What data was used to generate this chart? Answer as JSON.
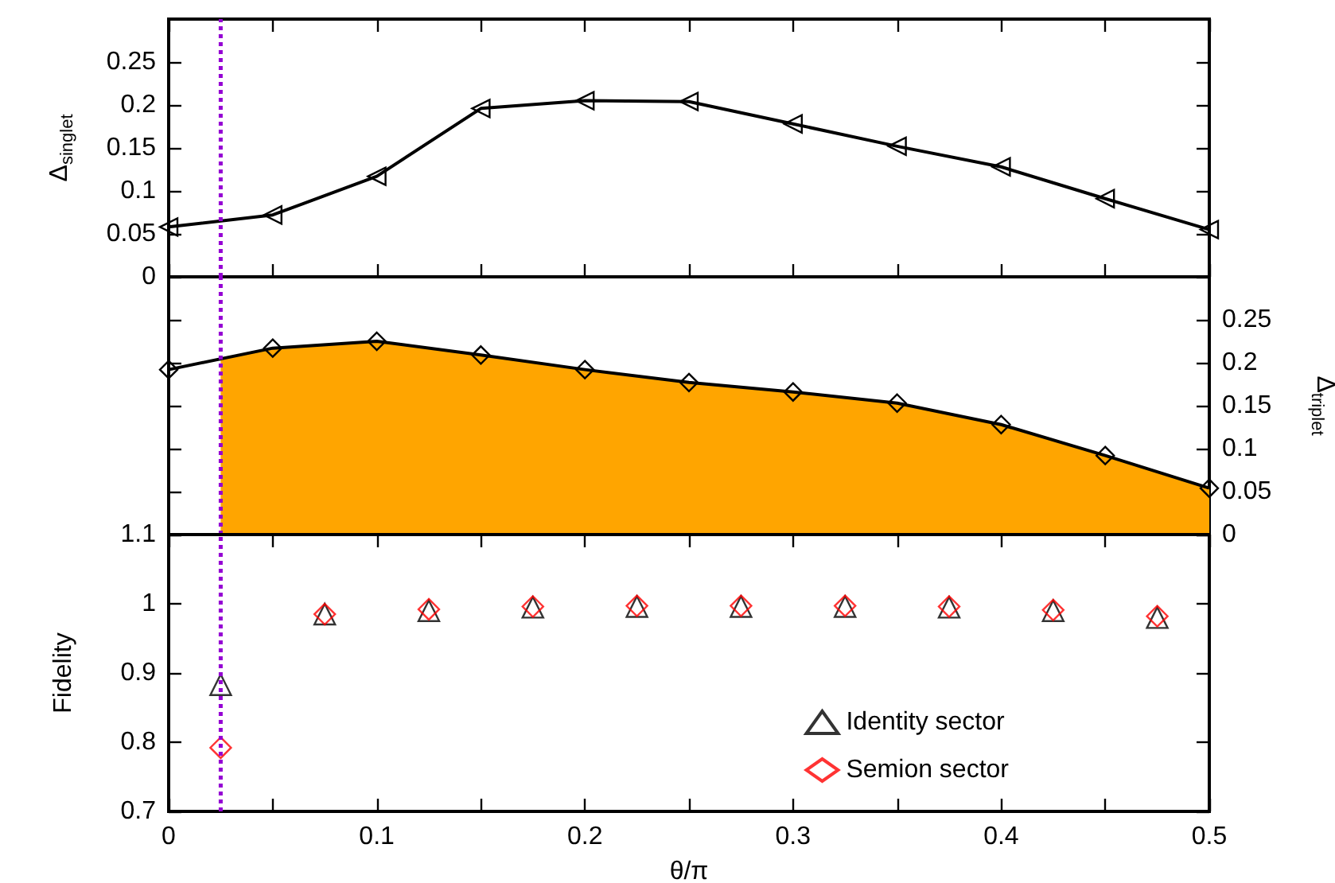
{
  "chart_data": [
    {
      "type": "line",
      "ylabel": "Δ$_{singlet}$",
      "x": [
        0,
        0.05,
        0.1,
        0.15,
        0.2,
        0.25,
        0.3,
        0.35,
        0.4,
        0.45,
        0.5
      ],
      "marker": "triangle",
      "series": [
        {
          "color": "#000000",
          "values": [
            0.058,
            0.072,
            0.117,
            0.196,
            0.205,
            0.204,
            0.178,
            0.152,
            0.128,
            0.091,
            0.055
          ]
        }
      ],
      "xlim": [
        0,
        0.5
      ],
      "xticks": [
        0,
        {
          "value": 0.05,
          "label": null
        },
        0.1,
        {
          "value": 0.15,
          "label": null
        },
        0.2,
        {
          "value": 0.25,
          "label": null
        },
        0.3,
        {
          "value": 0.35,
          "label": null
        },
        0.4,
        {
          "value": 0.45,
          "label": null
        },
        0.5
      ],
      "ylim": [
        0,
        0.3
      ],
      "yticks": [
        0,
        0.05,
        0.1,
        0.15,
        0.2,
        0.25
      ],
      "tick_labels": "y",
      "ref_lines": [
        {
          "axis": "x",
          "value": 0.025,
          "color": "#9400d3",
          "line_style": "dotted"
        }
      ]
    },
    {
      "type": "line",
      "y2label": "Δ$_{triplet}$",
      "x": [
        0,
        0.05,
        0.1,
        0.15,
        0.2,
        0.25,
        0.3,
        0.35,
        0.4,
        0.45,
        0.5
      ],
      "series": [
        {
          "type": "area",
          "axis": "y2",
          "color": "#ffa500",
          "x": [
            0.025,
            0.05,
            0.1,
            0.15,
            0.2,
            0.25,
            0.3,
            0.35,
            0.4,
            0.45,
            0.5
          ],
          "values": [
            0.204,
            0.217,
            0.225,
            0.209,
            0.192,
            0.177,
            0.166,
            0.153,
            0.128,
            0.092,
            0.054
          ]
        },
        {
          "axis": "y2",
          "color": "#000000",
          "marker": "diamond",
          "values": [
            0.192,
            0.217,
            0.225,
            0.209,
            0.192,
            0.177,
            0.166,
            0.153,
            0.128,
            0.092,
            0.054
          ]
        }
      ],
      "xlim": [
        0,
        0.5
      ],
      "y2lim": [
        0,
        0.3
      ],
      "y2ticks": [
        0,
        0.05,
        0.1,
        0.15,
        0.2,
        0.25
      ],
      "ref_lines": [
        {
          "axis": "x",
          "value": 0.025,
          "color": "#9400d3",
          "line_style": "dotted"
        }
      ]
    },
    {
      "type": "scatter",
      "xlabel": "θ/π",
      "ylabel": "Fidelity",
      "x": [
        0.025,
        0.075,
        0.125,
        0.175,
        0.225,
        0.275,
        0.325,
        0.375,
        0.425,
        0.475
      ],
      "legend": "bottom right",
      "series": [
        {
          "name": "Identity sector",
          "color": "#000000",
          "marker": "triangle",
          "values": [
            0.883,
            0.985,
            0.99,
            0.995,
            0.996,
            0.996,
            0.996,
            0.995,
            0.99,
            0.98
          ]
        },
        {
          "name": "Semion sector",
          "color": "#ff0000",
          "marker": "diamond",
          "values": [
            0.792,
            0.985,
            0.992,
            0.996,
            0.997,
            0.997,
            0.997,
            0.996,
            0.991,
            0.982
          ]
        }
      ],
      "xlim": [
        0,
        0.5
      ],
      "xticks": [
        0,
        {
          "value": 0.05,
          "label": null
        },
        0.1,
        {
          "value": 0.15,
          "label": null
        },
        0.2,
        {
          "value": 0.25,
          "label": null
        },
        0.3,
        {
          "value": 0.35,
          "label": null
        },
        0.4,
        {
          "value": 0.45,
          "label": null
        },
        0.5
      ],
      "ylim": [
        0.7,
        1.1
      ],
      "yticks": [
        0.7,
        0.8,
        0.9,
        1,
        1.1
      ],
      "ref_lines": [
        {
          "axis": "x",
          "value": 0.025,
          "color": "#9400d3",
          "line_style": "dotted"
        }
      ]
    }
  ]
}
